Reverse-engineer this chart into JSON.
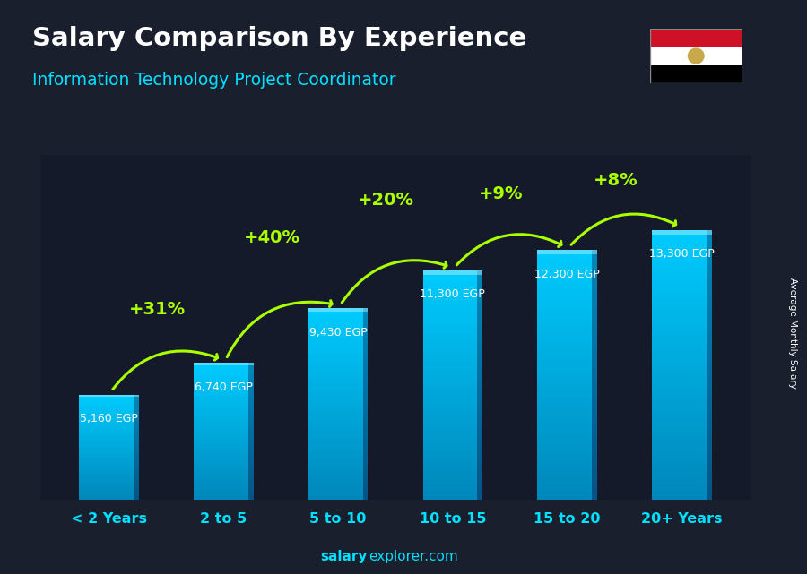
{
  "title": "Salary Comparison By Experience",
  "subtitle": "Information Technology Project Coordinator",
  "categories": [
    "< 2 Years",
    "2 to 5",
    "5 to 10",
    "10 to 15",
    "15 to 20",
    "20+ Years"
  ],
  "values": [
    5160,
    6740,
    9430,
    11300,
    12300,
    13300
  ],
  "value_labels": [
    "5,160 EGP",
    "6,740 EGP",
    "9,430 EGP",
    "11,300 EGP",
    "12,300 EGP",
    "13,300 EGP"
  ],
  "pct_labels": [
    "+31%",
    "+40%",
    "+20%",
    "+9%",
    "+8%"
  ],
  "bar_color_top": "#00ccff",
  "bar_color_bottom": "#0088bb",
  "background_color": "#1a1f2e",
  "text_color_white": "#ffffff",
  "text_color_cyan": "#00e0ff",
  "text_color_green": "#aaff00",
  "ylabel": "Average Monthly Salary",
  "watermark_bold": "salary",
  "watermark_normal": "explorer.com",
  "ylim_max": 17000,
  "bar_width": 0.52
}
